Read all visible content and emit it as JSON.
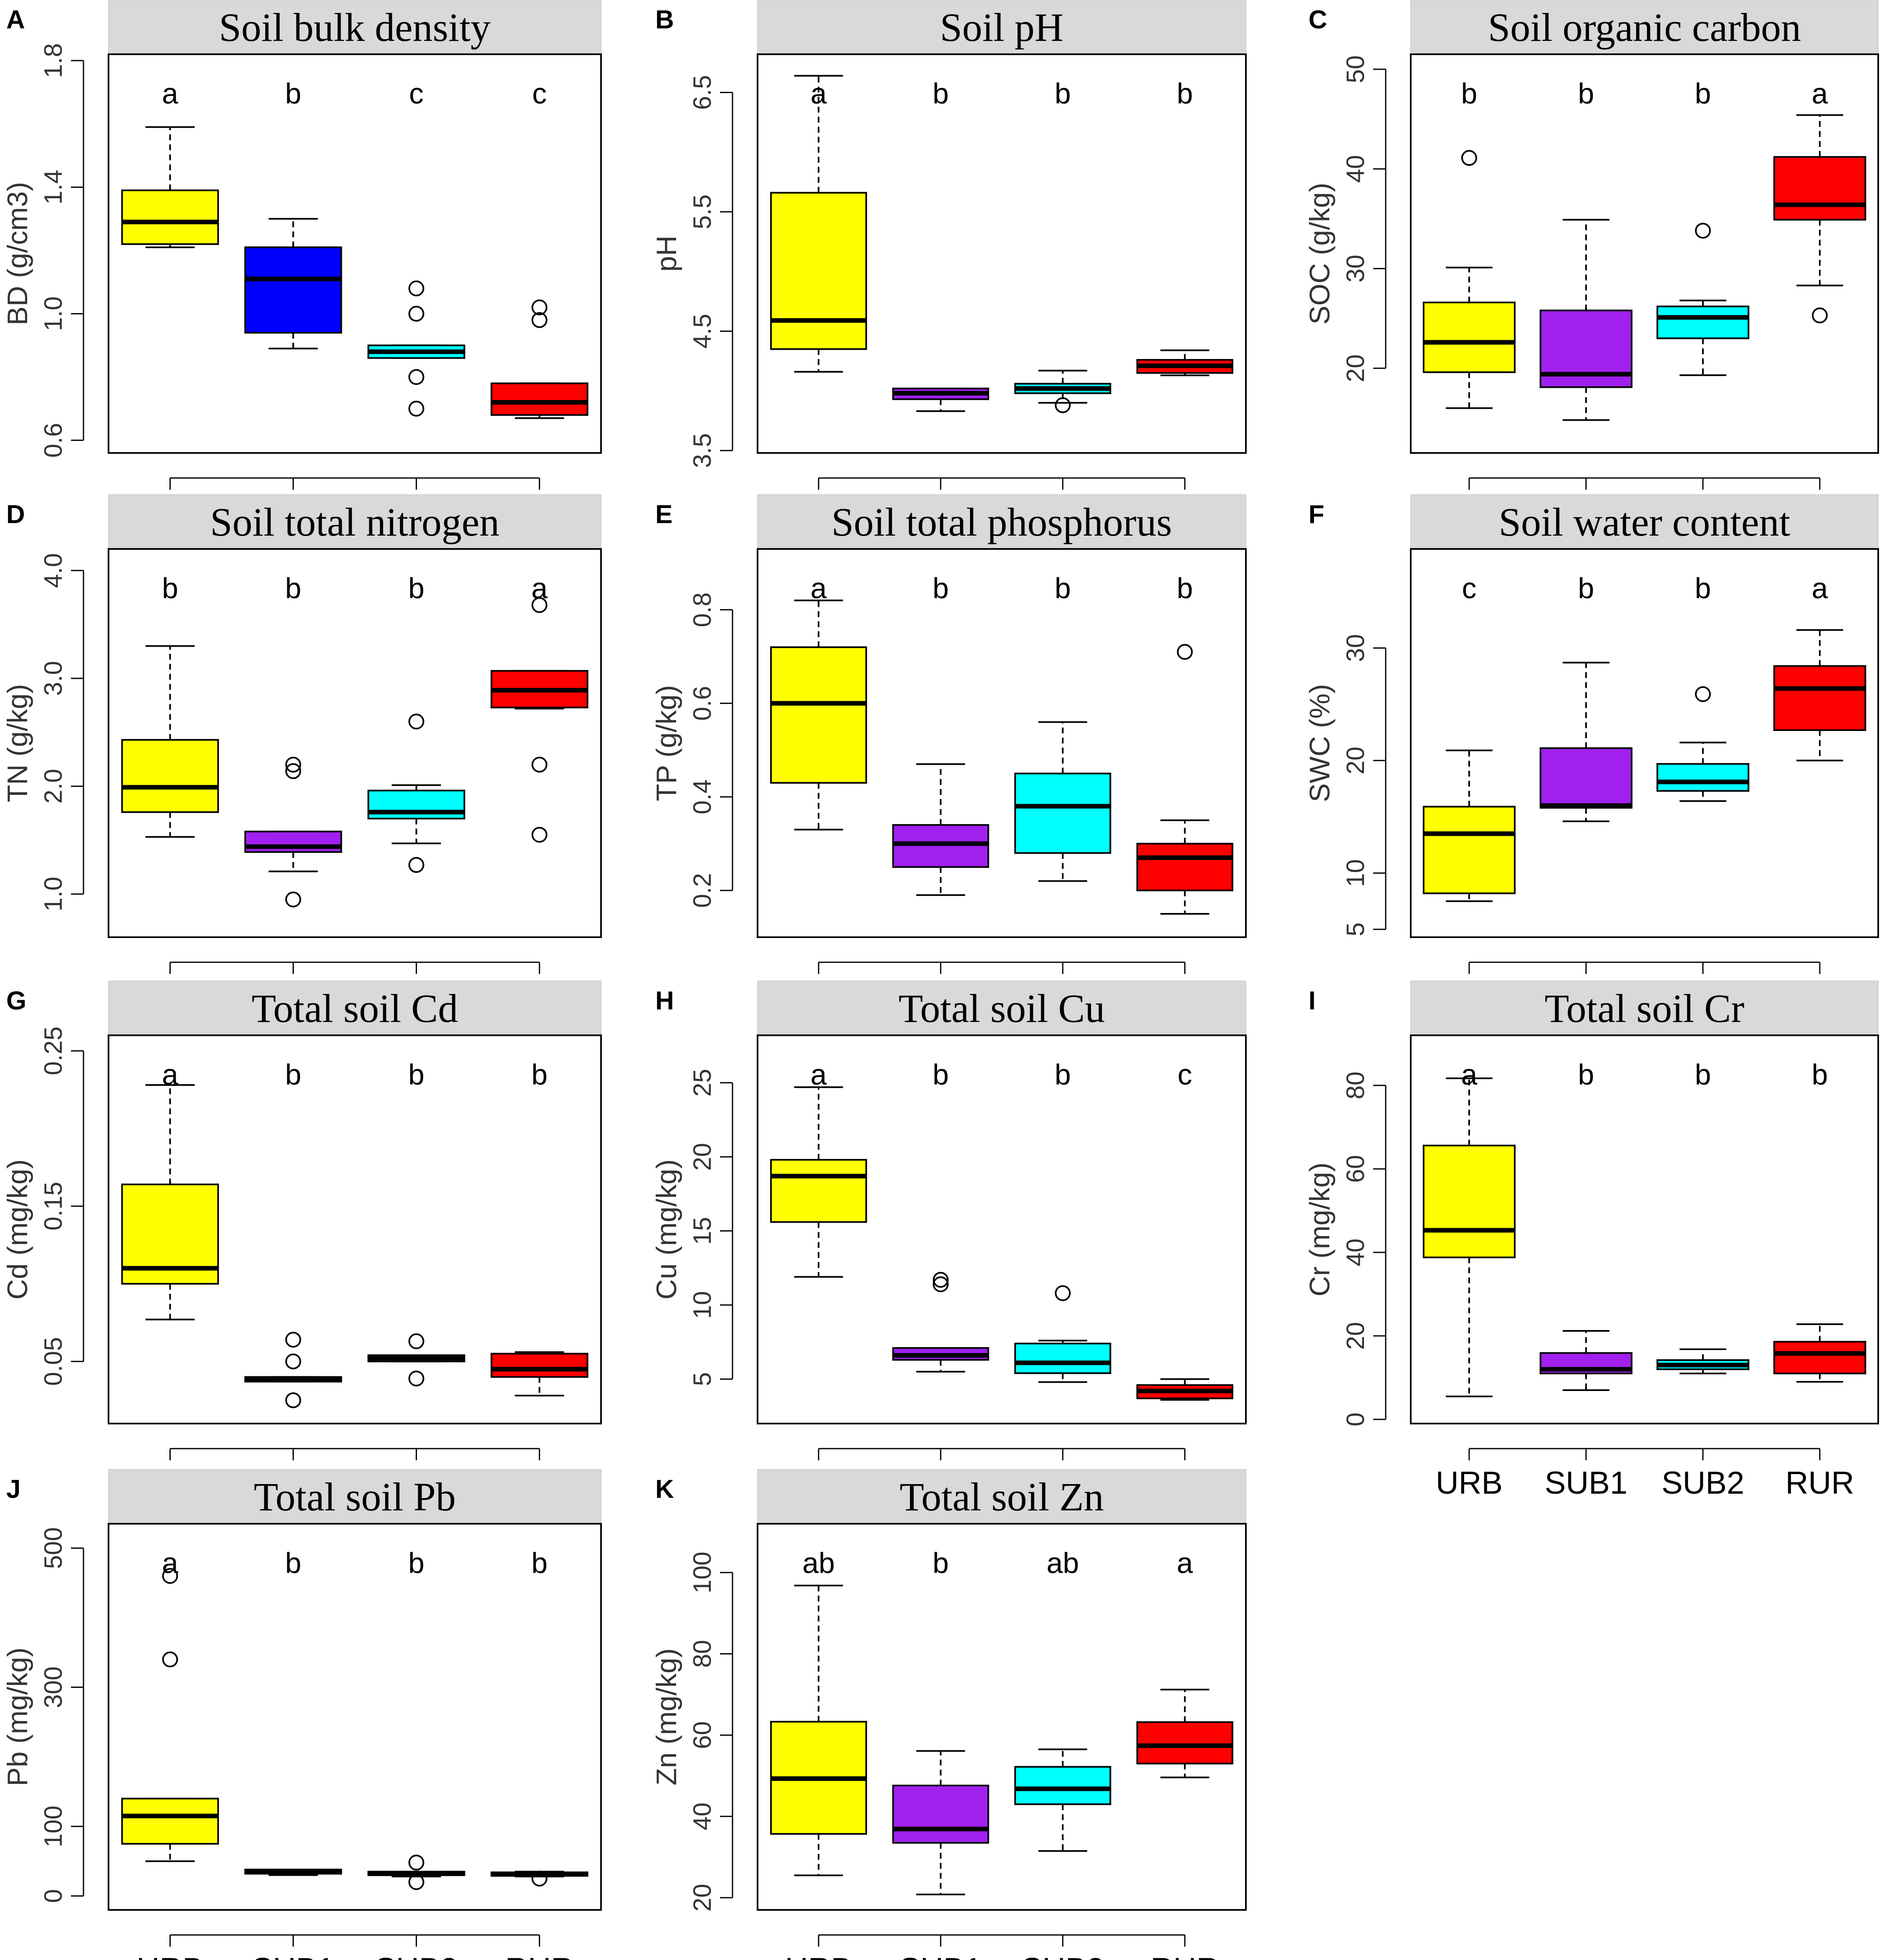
{
  "chart_data": [
    {
      "type": "boxplot",
      "panel": "A",
      "title": "Soil bulk density",
      "ylabel": "BD (g/cm3)",
      "ylim": [
        0.56,
        1.82
      ],
      "yticks": [
        0.6,
        1.0,
        1.4,
        1.8
      ],
      "ytick_labels": [
        "0.6",
        "1.0",
        "1.4",
        "1.8"
      ],
      "categories": [
        "URB",
        "SUB1",
        "SUB2",
        "RUR"
      ],
      "show_categories": false,
      "colors": [
        "#ffff00",
        "#0000ff",
        "#00ffff",
        "#ff0000"
      ],
      "significance": [
        "a",
        "b",
        "c",
        "c"
      ],
      "boxes": [
        {
          "min": 1.21,
          "q1": 1.22,
          "median": 1.29,
          "q3": 1.39,
          "max": 1.59,
          "outliers": []
        },
        {
          "min": 0.89,
          "q1": 0.94,
          "median": 1.11,
          "q3": 1.21,
          "max": 1.3,
          "outliers": []
        },
        {
          "min": 0.86,
          "q1": 0.86,
          "median": 0.88,
          "q3": 0.9,
          "max": 0.9,
          "outliers": [
            1.08,
            1.0,
            0.8,
            0.7
          ]
        },
        {
          "min": 0.67,
          "q1": 0.68,
          "median": 0.72,
          "q3": 0.78,
          "max": 0.78,
          "outliers": [
            1.02,
            0.98
          ]
        }
      ]
    },
    {
      "type": "boxplot",
      "panel": "B",
      "title": "Soil pH",
      "ylabel": "pH",
      "ylim": [
        3.48,
        6.82
      ],
      "yticks": [
        3.5,
        4.5,
        5.5,
        6.5
      ],
      "ytick_labels": [
        "3.5",
        "4.5",
        "5.5",
        "6.5"
      ],
      "categories": [
        "URB",
        "SUB1",
        "SUB2",
        "RUR"
      ],
      "show_categories": false,
      "colors": [
        "#ffff00",
        "#a020f0",
        "#00ffff",
        "#ff0000"
      ],
      "significance": [
        "a",
        "b",
        "b",
        "b"
      ],
      "boxes": [
        {
          "min": 4.16,
          "q1": 4.35,
          "median": 4.59,
          "q3": 5.66,
          "max": 6.64,
          "outliers": []
        },
        {
          "min": 3.83,
          "q1": 3.93,
          "median": 3.98,
          "q3": 4.02,
          "max": 4.02,
          "outliers": []
        },
        {
          "min": 3.9,
          "q1": 3.98,
          "median": 4.02,
          "q3": 4.06,
          "max": 4.17,
          "outliers": [
            3.88
          ]
        },
        {
          "min": 4.13,
          "q1": 4.15,
          "median": 4.21,
          "q3": 4.26,
          "max": 4.34,
          "outliers": []
        }
      ]
    },
    {
      "type": "boxplot",
      "panel": "C",
      "title": "Soil organic carbon",
      "ylabel": "SOC (g/kg)",
      "ylim": [
        11.5,
        51.5
      ],
      "yticks": [
        20,
        30,
        40,
        50
      ],
      "ytick_labels": [
        "20",
        "30",
        "40",
        "50"
      ],
      "categories": [
        "URB",
        "SUB1",
        "SUB2",
        "RUR"
      ],
      "show_categories": false,
      "colors": [
        "#ffff00",
        "#a020f0",
        "#00ffff",
        "#ff0000"
      ],
      "significance": [
        "b",
        "b",
        "b",
        "a"
      ],
      "boxes": [
        {
          "min": 16.0,
          "q1": 19.6,
          "median": 22.6,
          "q3": 26.6,
          "max": 30.1,
          "outliers": [
            41.1
          ]
        },
        {
          "min": 14.8,
          "q1": 18.1,
          "median": 19.4,
          "q3": 25.8,
          "max": 34.9,
          "outliers": []
        },
        {
          "min": 19.3,
          "q1": 23.0,
          "median": 25.1,
          "q3": 26.2,
          "max": 26.8,
          "outliers": [
            33.8
          ]
        },
        {
          "min": 28.3,
          "q1": 34.9,
          "median": 36.4,
          "q3": 41.2,
          "max": 45.4,
          "outliers": [
            25.3
          ]
        }
      ]
    },
    {
      "type": "boxplot",
      "panel": "D",
      "title": "Soil total nitrogen",
      "ylabel": "TN (g/kg)",
      "ylim": [
        0.6,
        4.2
      ],
      "yticks": [
        1.0,
        2.0,
        3.0,
        4.0
      ],
      "ytick_labels": [
        "1.0",
        "2.0",
        "3.0",
        "4.0"
      ],
      "categories": [
        "URB",
        "SUB1",
        "SUB2",
        "RUR"
      ],
      "show_categories": false,
      "colors": [
        "#ffff00",
        "#a020f0",
        "#00ffff",
        "#ff0000"
      ],
      "significance": [
        "b",
        "b",
        "b",
        "a"
      ],
      "boxes": [
        {
          "min": 1.53,
          "q1": 1.76,
          "median": 1.99,
          "q3": 2.43,
          "max": 3.3,
          "outliers": []
        },
        {
          "min": 1.21,
          "q1": 1.39,
          "median": 1.44,
          "q3": 1.58,
          "max": 1.58,
          "outliers": [
            2.2,
            2.14,
            0.95
          ]
        },
        {
          "min": 1.47,
          "q1": 1.7,
          "median": 1.76,
          "q3": 1.96,
          "max": 2.01,
          "outliers": [
            2.6,
            1.27
          ]
        },
        {
          "min": 2.72,
          "q1": 2.73,
          "median": 2.89,
          "q3": 3.07,
          "max": 3.07,
          "outliers": [
            3.68,
            2.2,
            1.55
          ]
        }
      ]
    },
    {
      "type": "boxplot",
      "panel": "E",
      "title": "Soil total phosphorus",
      "ylabel": "TP (g/kg)",
      "ylim": [
        0.1,
        0.93
      ],
      "yticks": [
        0.2,
        0.4,
        0.6,
        0.8
      ],
      "ytick_labels": [
        "0.2",
        "0.4",
        "0.6",
        "0.8"
      ],
      "categories": [
        "URB",
        "SUB1",
        "SUB2",
        "RUR"
      ],
      "show_categories": false,
      "colors": [
        "#ffff00",
        "#a020f0",
        "#00ffff",
        "#ff0000"
      ],
      "significance": [
        "a",
        "b",
        "b",
        "b"
      ],
      "boxes": [
        {
          "min": 0.33,
          "q1": 0.43,
          "median": 0.6,
          "q3": 0.72,
          "max": 0.82,
          "outliers": []
        },
        {
          "min": 0.19,
          "q1": 0.25,
          "median": 0.3,
          "q3": 0.34,
          "max": 0.47,
          "outliers": []
        },
        {
          "min": 0.22,
          "q1": 0.28,
          "median": 0.38,
          "q3": 0.45,
          "max": 0.56,
          "outliers": []
        },
        {
          "min": 0.15,
          "q1": 0.2,
          "median": 0.27,
          "q3": 0.3,
          "max": 0.35,
          "outliers": [
            0.71
          ]
        }
      ]
    },
    {
      "type": "boxplot",
      "panel": "F",
      "title": "Soil water content",
      "ylabel": "SWC (%)",
      "ylim": [
        4.3,
        38.8
      ],
      "yticks": [
        5,
        10,
        20,
        30
      ],
      "ytick_labels": [
        "5",
        "10",
        "20",
        "30"
      ],
      "categories": [
        "URB",
        "SUB1",
        "SUB2",
        "RUR"
      ],
      "show_categories": false,
      "colors": [
        "#ffff00",
        "#a020f0",
        "#00ffff",
        "#ff0000"
      ],
      "significance": [
        "c",
        "b",
        "b",
        "a"
      ],
      "boxes": [
        {
          "min": 7.5,
          "q1": 8.2,
          "median": 13.5,
          "q3": 15.9,
          "max": 20.9,
          "outliers": []
        },
        {
          "min": 14.6,
          "q1": 15.8,
          "median": 16.0,
          "q3": 21.1,
          "max": 28.7,
          "outliers": []
        },
        {
          "min": 16.4,
          "q1": 17.3,
          "median": 18.1,
          "q3": 19.7,
          "max": 21.6,
          "outliers": [
            25.9
          ]
        },
        {
          "min": 20.0,
          "q1": 22.7,
          "median": 26.4,
          "q3": 28.4,
          "max": 31.6,
          "outliers": []
        }
      ]
    },
    {
      "type": "boxplot",
      "panel": "G",
      "title": "Total soil Cd",
      "ylabel": "Cd (mg/kg)",
      "ylim": [
        0.01,
        0.26
      ],
      "yticks": [
        0.05,
        0.15,
        0.25
      ],
      "ytick_labels": [
        "0.05",
        "0.15",
        "0.25"
      ],
      "categories": [
        "URB",
        "SUB1",
        "SUB2",
        "RUR"
      ],
      "show_categories": false,
      "colors": [
        "#ffff00",
        "#a020f0",
        "#00ffff",
        "#ff0000"
      ],
      "significance": [
        "a",
        "b",
        "b",
        "b"
      ],
      "boxes": [
        {
          "min": 0.077,
          "q1": 0.1,
          "median": 0.11,
          "q3": 0.164,
          "max": 0.228,
          "outliers": []
        },
        {
          "min": 0.037,
          "q1": 0.037,
          "median": 0.038,
          "q3": 0.04,
          "max": 0.04,
          "outliers": [
            0.064,
            0.05,
            0.025
          ]
        },
        {
          "min": 0.05,
          "q1": 0.05,
          "median": 0.052,
          "q3": 0.054,
          "max": 0.054,
          "outliers": [
            0.063,
            0.039
          ]
        },
        {
          "min": 0.028,
          "q1": 0.04,
          "median": 0.045,
          "q3": 0.055,
          "max": 0.056,
          "outliers": []
        }
      ]
    },
    {
      "type": "boxplot",
      "panel": "H",
      "title": "Total soil Cu",
      "ylabel": "Cu (mg/kg)",
      "ylim": [
        2,
        28.2
      ],
      "yticks": [
        5,
        10,
        15,
        20,
        25
      ],
      "ytick_labels": [
        "5",
        "10",
        "15",
        "20",
        "25"
      ],
      "categories": [
        "URB",
        "SUB1",
        "SUB2",
        "RUR"
      ],
      "show_categories": false,
      "colors": [
        "#ffff00",
        "#a020f0",
        "#00ffff",
        "#ff0000"
      ],
      "significance": [
        "a",
        "b",
        "b",
        "c"
      ],
      "boxes": [
        {
          "min": 11.9,
          "q1": 15.6,
          "median": 18.7,
          "q3": 19.8,
          "max": 24.7,
          "outliers": []
        },
        {
          "min": 5.5,
          "q1": 6.3,
          "median": 6.6,
          "q3": 7.1,
          "max": 7.1,
          "outliers": [
            11.7,
            11.4
          ]
        },
        {
          "min": 4.8,
          "q1": 5.4,
          "median": 6.1,
          "q3": 7.4,
          "max": 7.6,
          "outliers": [
            10.8
          ]
        },
        {
          "min": 3.6,
          "q1": 3.7,
          "median": 4.2,
          "q3": 4.6,
          "max": 5.0,
          "outliers": []
        }
      ]
    },
    {
      "type": "boxplot",
      "panel": "I",
      "title": "Total soil Cr",
      "ylabel": "Cr (mg/kg)",
      "ylim": [
        -1,
        92
      ],
      "yticks": [
        0,
        20,
        40,
        60,
        80
      ],
      "ytick_labels": [
        "0",
        "20",
        "40",
        "60",
        "80"
      ],
      "categories": [
        "URB",
        "SUB1",
        "SUB2",
        "RUR"
      ],
      "show_categories": true,
      "colors": [
        "#ffff00",
        "#a020f0",
        "#00ffff",
        "#ff0000"
      ],
      "significance": [
        "a",
        "b",
        "b",
        "b"
      ],
      "boxes": [
        {
          "min": 5.5,
          "q1": 38.8,
          "median": 45.3,
          "q3": 65.6,
          "max": 81.7,
          "outliers": []
        },
        {
          "min": 7.0,
          "q1": 11.0,
          "median": 12.0,
          "q3": 15.9,
          "max": 21.2,
          "outliers": []
        },
        {
          "min": 11.0,
          "q1": 12.0,
          "median": 13.0,
          "q3": 14.2,
          "max": 16.8,
          "outliers": []
        },
        {
          "min": 9.0,
          "q1": 11.0,
          "median": 15.8,
          "q3": 18.6,
          "max": 22.8,
          "outliers": []
        }
      ]
    },
    {
      "type": "boxplot",
      "panel": "J",
      "title": "Total soil Pb",
      "ylabel": "Pb (mg/kg)",
      "ylim": [
        -20,
        535
      ],
      "yticks": [
        0,
        100,
        300,
        500
      ],
      "ytick_labels": [
        "0",
        "100",
        "300",
        "500"
      ],
      "categories": [
        "URB",
        "SUB1",
        "SUB2",
        "RUR"
      ],
      "show_categories": true,
      "colors": [
        "#ffff00",
        "#a020f0",
        "#00ffff",
        "#ff0000"
      ],
      "significance": [
        "a",
        "b",
        "b",
        "b"
      ],
      "boxes": [
        {
          "min": 50,
          "q1": 75,
          "median": 115,
          "q3": 140,
          "max": 140,
          "outliers": [
            460,
            340
          ]
        },
        {
          "min": 30,
          "q1": 32,
          "median": 35,
          "q3": 38,
          "max": 38,
          "outliers": []
        },
        {
          "min": 28,
          "q1": 30,
          "median": 32,
          "q3": 35,
          "max": 35,
          "outliers": [
            48,
            20
          ]
        },
        {
          "min": 28,
          "q1": 29,
          "median": 31,
          "q3": 34,
          "max": 35,
          "outliers": [
            25
          ]
        }
      ]
    },
    {
      "type": "boxplot",
      "panel": "K",
      "title": "Total soil Zn",
      "ylabel": "Zn (mg/kg)",
      "ylim": [
        17,
        112
      ],
      "yticks": [
        20,
        40,
        60,
        80,
        100
      ],
      "ytick_labels": [
        "20",
        "40",
        "60",
        "80",
        "100"
      ],
      "categories": [
        "URB",
        "SUB1",
        "SUB2",
        "RUR"
      ],
      "show_categories": true,
      "colors": [
        "#ffff00",
        "#a020f0",
        "#00ffff",
        "#ff0000"
      ],
      "significance": [
        "ab",
        "b",
        "ab",
        "a"
      ],
      "boxes": [
        {
          "min": 25.5,
          "q1": 35.7,
          "median": 49.3,
          "q3": 63.3,
          "max": 96.8,
          "outliers": []
        },
        {
          "min": 20.8,
          "q1": 33.5,
          "median": 36.9,
          "q3": 47.6,
          "max": 56.1,
          "outliers": []
        },
        {
          "min": 31.5,
          "q1": 43.0,
          "median": 46.8,
          "q3": 52.2,
          "max": 56.5,
          "outliers": []
        },
        {
          "min": 49.6,
          "q1": 53.0,
          "median": 57.4,
          "q3": 63.2,
          "max": 71.2,
          "outliers": []
        }
      ]
    }
  ]
}
